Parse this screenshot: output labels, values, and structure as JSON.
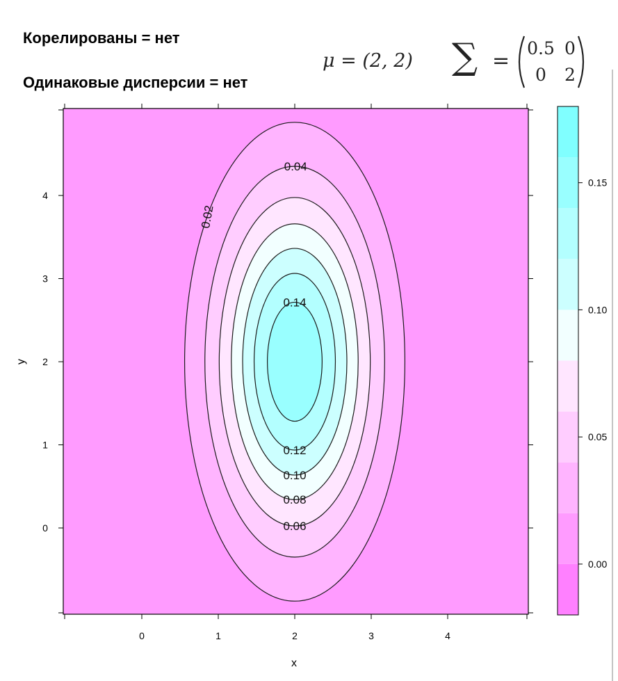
{
  "headings": {
    "line1": "Корелированы = нет",
    "line2": "Одинаковые дисперсии = нет"
  },
  "formulas": {
    "mu": "μ = (2, 2)",
    "sigma_symbol": "∑",
    "sigma_equals": "=",
    "matrix": [
      [
        "0.5",
        "0"
      ],
      [
        "0",
        "2"
      ]
    ]
  },
  "chart_data": {
    "type": "contour",
    "xlabel": "x",
    "ylabel": "y",
    "xlim": [
      -1,
      5
    ],
    "ylim": [
      -1,
      5
    ],
    "x_ticks": [
      "0",
      "1",
      "2",
      "3",
      "4"
    ],
    "y_ticks": [
      "0",
      "1",
      "2",
      "3",
      "4"
    ],
    "mean": [
      2,
      2
    ],
    "covariance": [
      [
        0.5,
        0
      ],
      [
        0,
        2
      ]
    ],
    "contour_levels": [
      0.02,
      0.04,
      0.06,
      0.08,
      0.1,
      0.12,
      0.14
    ],
    "contour_labels": [
      "0.02",
      "0.04",
      "0.06",
      "0.08",
      "0.10",
      "0.12",
      "0.14"
    ],
    "colorbar": {
      "ticks": [
        "0.00",
        "0.05",
        "0.10",
        "0.15"
      ],
      "range": [
        -0.02,
        0.18
      ],
      "bands": [
        {
          "from": -0.02,
          "to": 0.0,
          "color": "#ff80ff"
        },
        {
          "from": 0.0,
          "to": 0.02,
          "color": "#ff9bff"
        },
        {
          "from": 0.02,
          "to": 0.04,
          "color": "#ffb4ff"
        },
        {
          "from": 0.04,
          "to": 0.06,
          "color": "#ffcdff"
        },
        {
          "from": 0.06,
          "to": 0.08,
          "color": "#ffe6ff"
        },
        {
          "from": 0.08,
          "to": 0.1,
          "color": "#f2ffff"
        },
        {
          "from": 0.1,
          "to": 0.12,
          "color": "#ccffff"
        },
        {
          "from": 0.12,
          "to": 0.14,
          "color": "#b3ffff"
        },
        {
          "from": 0.14,
          "to": 0.16,
          "color": "#99ffff"
        },
        {
          "from": 0.16,
          "to": 0.18,
          "color": "#80ffff"
        }
      ]
    },
    "grid": false
  }
}
